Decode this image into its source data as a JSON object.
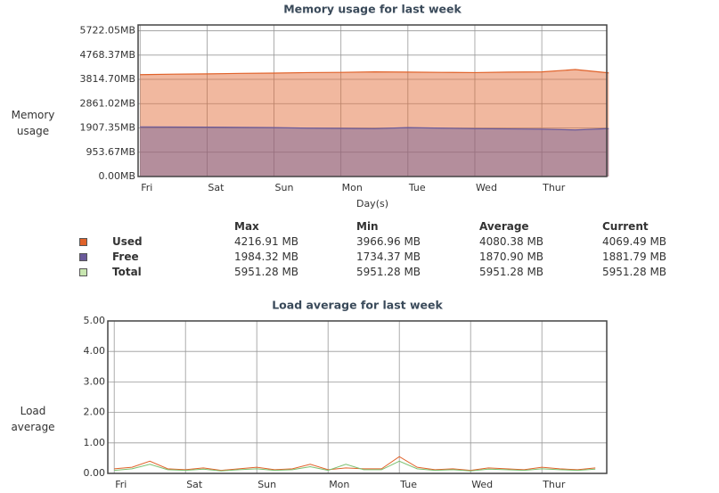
{
  "chart_data": [
    {
      "type": "area",
      "title": "Memory usage for last week",
      "xlabel": "Day(s)",
      "ylabel": "Memory usage",
      "x": [
        0,
        0.5,
        1,
        1.5,
        2,
        2.5,
        3,
        3.5,
        4,
        4.5,
        5,
        5.5,
        6,
        6.5,
        7
      ],
      "series": [
        {
          "name": "Used",
          "color": "#e0622a",
          "values": [
            4000,
            4020,
            4030,
            4050,
            4060,
            4080,
            4090,
            4110,
            4100,
            4090,
            4080,
            4100,
            4110,
            4200,
            4069.49
          ]
        },
        {
          "name": "Free",
          "color": "#6a5a9a",
          "values": [
            1950,
            1945,
            1940,
            1930,
            1920,
            1900,
            1890,
            1880,
            1920,
            1900,
            1880,
            1870,
            1860,
            1830,
            1881.79
          ]
        }
      ],
      "xlim": [
        -0.03,
        6.97
      ],
      "xticks": [
        {
          "value": 0,
          "label": "Fri"
        },
        {
          "value": 1,
          "label": "Sat"
        },
        {
          "value": 2,
          "label": "Sun"
        },
        {
          "value": 3,
          "label": "Mon"
        },
        {
          "value": 4,
          "label": "Tue"
        },
        {
          "value": 5,
          "label": "Wed"
        },
        {
          "value": 6,
          "label": "Thur"
        }
      ],
      "ylim": [
        0,
        5951.28
      ],
      "yticks": [
        {
          "value": 0,
          "label": "0.00MB"
        },
        {
          "value": 953.67,
          "label": "953.67MB"
        },
        {
          "value": 1907.35,
          "label": "1907.35MB"
        },
        {
          "value": 2861.02,
          "label": "2861.02MB"
        },
        {
          "value": 3814.7,
          "label": "3814.70MB"
        },
        {
          "value": 4768.37,
          "label": "4768.37MB"
        },
        {
          "value": 5722.05,
          "label": "5722.05MB"
        }
      ],
      "grid": true
    },
    {
      "type": "line",
      "title": "Load average for last week",
      "ylabel": "Load average",
      "x": [
        0,
        0.25,
        0.5,
        0.75,
        1,
        1.25,
        1.5,
        1.75,
        2,
        2.25,
        2.5,
        2.75,
        3,
        3.25,
        3.5,
        3.75,
        4,
        4.25,
        4.5,
        4.75,
        5,
        5.25,
        5.5,
        5.75,
        6,
        6.25,
        6.5,
        6.75
      ],
      "series": [
        {
          "color": "#e0622a",
          "values": [
            0.15,
            0.2,
            0.4,
            0.15,
            0.12,
            0.18,
            0.1,
            0.15,
            0.2,
            0.12,
            0.15,
            0.3,
            0.12,
            0.18,
            0.15,
            0.15,
            0.55,
            0.2,
            0.12,
            0.15,
            0.1,
            0.18,
            0.15,
            0.12,
            0.2,
            0.15,
            0.12,
            0.18
          ]
        },
        {
          "color": "#7cc070",
          "values": [
            0.1,
            0.15,
            0.3,
            0.12,
            0.1,
            0.14,
            0.08,
            0.12,
            0.15,
            0.1,
            0.12,
            0.22,
            0.1,
            0.3,
            0.12,
            0.12,
            0.4,
            0.15,
            0.1,
            0.12,
            0.08,
            0.14,
            0.12,
            0.1,
            0.15,
            0.12,
            0.1,
            0.14
          ]
        }
      ],
      "xlim": [
        -0.09,
        6.91
      ],
      "xticks": [
        {
          "value": 0,
          "label": "Fri"
        },
        {
          "value": 1,
          "label": "Sat"
        },
        {
          "value": 2,
          "label": "Sun"
        },
        {
          "value": 3,
          "label": "Mon"
        },
        {
          "value": 4,
          "label": "Tue"
        },
        {
          "value": 5,
          "label": "Wed"
        },
        {
          "value": 6,
          "label": "Thur"
        }
      ],
      "ylim": [
        0,
        5
      ],
      "yticks": [
        {
          "value": 0,
          "label": "0.00"
        },
        {
          "value": 1,
          "label": "1.00"
        },
        {
          "value": 2,
          "label": "2.00"
        },
        {
          "value": 3,
          "label": "3.00"
        },
        {
          "value": 4,
          "label": "4.00"
        },
        {
          "value": 5,
          "label": "5.00"
        }
      ],
      "grid": true
    }
  ],
  "memory_stats": {
    "header": [
      "Max",
      "Min",
      "Average",
      "Current"
    ],
    "rows": [
      {
        "name": "Used",
        "color": "#e0622a",
        "cells": [
          "4216.91 MB",
          "3966.96 MB",
          "4080.38 MB",
          "4069.49 MB"
        ]
      },
      {
        "name": "Free",
        "color": "#6a5a9a",
        "cells": [
          "1984.32 MB",
          "1734.37 MB",
          "1870.90 MB",
          "1881.79 MB"
        ]
      },
      {
        "name": "Total",
        "color": "#c8e6b0",
        "cells": [
          "5951.28 MB",
          "5951.28 MB",
          "5951.28 MB",
          "5951.28 MB"
        ]
      }
    ]
  }
}
